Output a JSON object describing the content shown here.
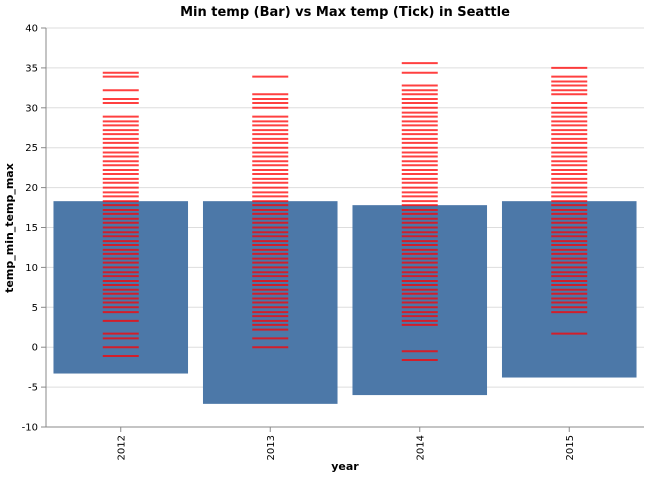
{
  "chart_data": {
    "type": "bar",
    "title": "Min temp (Bar) vs Max temp (Tick) in Seattle",
    "xlabel": "year",
    "ylabel": "temp_min_temp_max",
    "categories": [
      "2012",
      "2013",
      "2014",
      "2015"
    ],
    "ylim": [
      -10,
      40
    ],
    "yticks": [
      -10,
      -5,
      0,
      5,
      10,
      15,
      20,
      25,
      30,
      35,
      40
    ],
    "grid": true,
    "bar_color": "#4c78a8",
    "tick_color": "#ff0000",
    "series": [
      {
        "name": "temp_min",
        "mark": "bar",
        "ranges": [
          {
            "category": "2012",
            "low": -3.3,
            "high": 18.3
          },
          {
            "category": "2013",
            "low": -7.1,
            "high": 18.3
          },
          {
            "category": "2014",
            "low": -6.0,
            "high": 17.8
          },
          {
            "category": "2015",
            "low": -3.8,
            "high": 18.3
          }
        ]
      },
      {
        "name": "temp_max",
        "mark": "tick",
        "points": [
          {
            "category": "2012",
            "values": [
              -1.1,
              0.0,
              1.1,
              1.7,
              3.3,
              4.4,
              5.0,
              5.6,
              6.1,
              6.7,
              7.2,
              7.8,
              8.3,
              8.9,
              9.4,
              10.0,
              10.6,
              11.1,
              11.7,
              12.2,
              12.8,
              13.3,
              13.9,
              14.4,
              15.0,
              15.6,
              16.1,
              16.7,
              17.2,
              17.8,
              18.3,
              18.9,
              19.4,
              20.0,
              20.6,
              21.1,
              21.7,
              22.2,
              22.8,
              23.3,
              23.9,
              24.4,
              25.0,
              25.6,
              26.1,
              26.7,
              27.2,
              27.8,
              28.3,
              28.9,
              30.6,
              31.1,
              32.2,
              33.9,
              34.4
            ]
          },
          {
            "category": "2013",
            "values": [
              0.0,
              1.1,
              2.2,
              2.8,
              3.3,
              3.9,
              4.4,
              5.0,
              5.6,
              6.1,
              6.7,
              7.2,
              7.8,
              8.3,
              8.9,
              9.4,
              10.0,
              10.6,
              11.1,
              11.7,
              12.2,
              12.8,
              13.3,
              13.9,
              14.4,
              15.0,
              15.6,
              16.1,
              16.7,
              17.2,
              17.8,
              18.3,
              18.9,
              19.4,
              20.0,
              20.6,
              21.1,
              21.7,
              22.2,
              22.8,
              23.3,
              23.9,
              24.4,
              25.0,
              25.6,
              26.1,
              26.7,
              27.2,
              27.8,
              28.3,
              28.9,
              30.0,
              30.6,
              31.1,
              31.7,
              33.9
            ]
          },
          {
            "category": "2014",
            "values": [
              -1.6,
              -0.5,
              2.8,
              3.3,
              3.9,
              4.4,
              5.0,
              5.6,
              6.1,
              6.7,
              7.2,
              7.8,
              8.3,
              8.9,
              9.4,
              10.0,
              10.6,
              11.1,
              11.7,
              12.2,
              12.8,
              13.3,
              13.9,
              14.4,
              15.0,
              15.6,
              16.1,
              16.7,
              17.2,
              17.8,
              18.3,
              18.9,
              19.4,
              20.0,
              20.6,
              21.1,
              21.7,
              22.2,
              22.8,
              23.3,
              23.9,
              24.4,
              25.0,
              25.6,
              26.1,
              26.7,
              27.2,
              27.8,
              28.3,
              28.9,
              29.4,
              30.0,
              30.6,
              31.1,
              31.7,
              32.2,
              32.8,
              34.4,
              35.6
            ]
          },
          {
            "category": "2015",
            "values": [
              1.7,
              4.4,
              5.0,
              5.6,
              6.1,
              6.7,
              7.2,
              7.8,
              8.3,
              8.9,
              9.4,
              10.0,
              10.6,
              11.1,
              11.7,
              12.2,
              12.8,
              13.3,
              13.9,
              14.4,
              15.0,
              15.6,
              16.1,
              16.7,
              17.2,
              17.8,
              18.3,
              18.9,
              19.4,
              20.0,
              20.6,
              21.1,
              21.7,
              22.2,
              22.8,
              23.3,
              23.9,
              24.4,
              25.0,
              25.6,
              26.1,
              26.7,
              27.2,
              27.8,
              28.3,
              28.9,
              29.4,
              30.0,
              30.6,
              31.7,
              32.2,
              32.8,
              33.3,
              33.9,
              35.0
            ]
          }
        ]
      }
    ]
  }
}
